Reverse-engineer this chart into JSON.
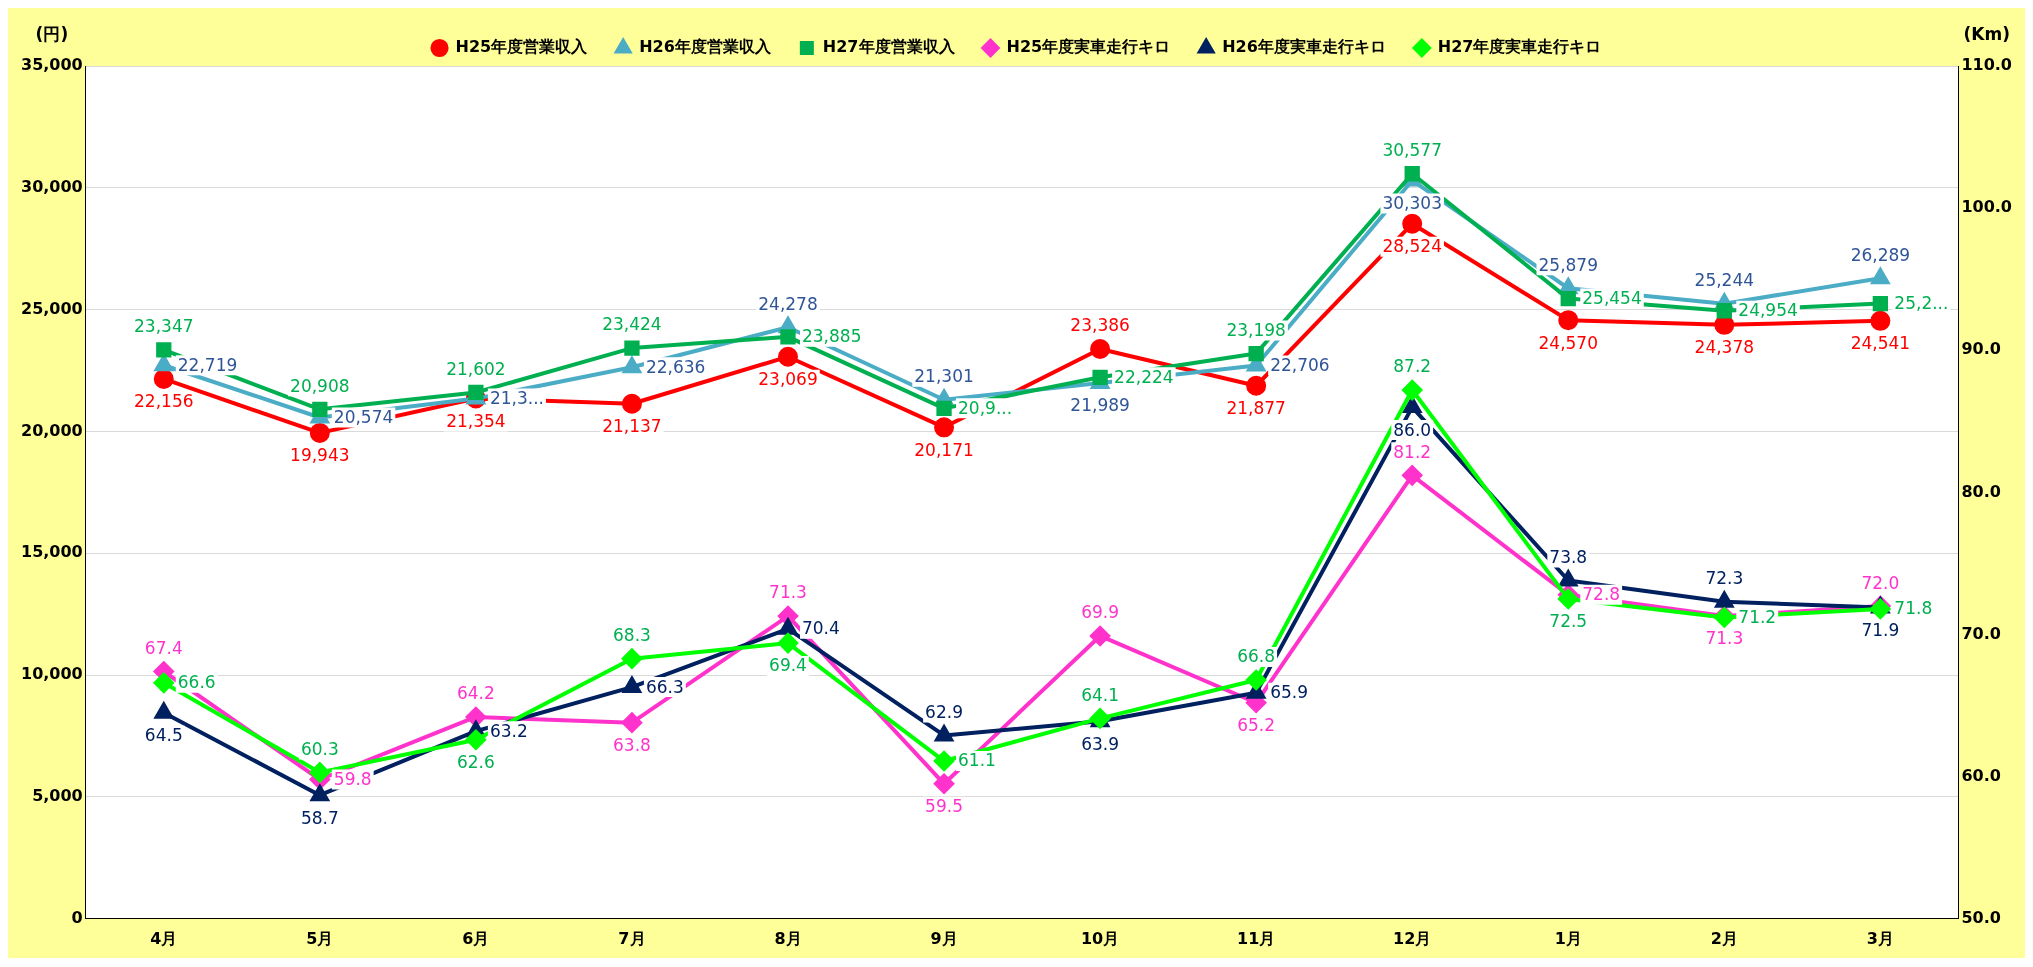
{
  "chart_data": {
    "type": "line",
    "categories": [
      "4月",
      "5月",
      "6月",
      "7月",
      "8月",
      "9月",
      "10月",
      "11月",
      "12月",
      "1月",
      "2月",
      "3月"
    ],
    "ylabel": "(円)",
    "y2label": "(Km)",
    "ylim": [
      0,
      35000
    ],
    "yticks": [
      0,
      {
        "value": 5000,
        "label": "5,000"
      },
      {
        "value": 10000,
        "label": "10,000"
      },
      {
        "value": 15000,
        "label": "15,000"
      },
      {
        "value": 20000,
        "label": "20,000"
      },
      {
        "value": 25000,
        "label": "25,000"
      },
      {
        "value": 30000,
        "label": "30,000"
      },
      {
        "value": 35000,
        "label": "35,000"
      }
    ],
    "y2lim": [
      50,
      110
    ],
    "y2ticks": [
      {
        "value": 50,
        "label": "50.0"
      },
      {
        "value": 60,
        "label": "60.0"
      },
      {
        "value": 70,
        "label": "70.0"
      },
      {
        "value": 80,
        "label": "80.0"
      },
      {
        "value": 90,
        "label": "90.0"
      },
      {
        "value": 100,
        "label": "100.0"
      },
      {
        "value": 110,
        "label": "110.0"
      }
    ],
    "grid": "y",
    "legend": "top",
    "line_style": "solid",
    "series": [
      {
        "name": "H25年度営業収入",
        "color": "#ff0000",
        "marker": "circle",
        "values": [
          22156,
          19943,
          21354,
          21137,
          23069,
          20171,
          23386,
          21877,
          28524,
          24570,
          24378,
          24541
        ],
        "value_labels": [
          "22,156",
          "19,943",
          "21,354",
          "21,137",
          "23,069",
          "20,171",
          "23,386",
          "21,877",
          "28,524",
          "24,570",
          "24,378",
          "24,541"
        ]
      },
      {
        "name": "H26年度営業収入",
        "color": "#4bacc6",
        "marker": "triangle",
        "values": [
          22719,
          20574,
          21350,
          22636,
          24278,
          21301,
          21989,
          22706,
          30303,
          25879,
          25244,
          26289
        ],
        "value_labels": [
          "22,719",
          "20,574",
          "21,3...",
          "22,636",
          "24,278",
          "21,301",
          "21,989",
          "22,706",
          "30,303",
          "25,879",
          "25,244",
          "26,289"
        ]
      },
      {
        "name": "H27年度営業収入",
        "color": "#00b050",
        "marker": "square",
        "values": [
          23347,
          20908,
          21602,
          23424,
          23885,
          20950,
          22224,
          23198,
          30577,
          25454,
          24954,
          25250
        ],
        "value_labels": [
          "23,347",
          "20,908",
          "21,602",
          "23,424",
          "23,885",
          "20,9...",
          "22,224",
          "23,198",
          "30,577",
          "25,454",
          "24,954",
          "25,2..."
        ]
      },
      {
        "name": "H25年度実車走行キロ",
        "color": "#ff33cc",
        "marker": "diamond",
        "axis": "y2",
        "values": [
          67.4,
          59.8,
          64.2,
          63.8,
          71.3,
          59.5,
          69.9,
          65.2,
          81.2,
          72.8,
          71.3,
          72.0
        ],
        "value_labels": [
          "67.4",
          "59.8",
          "64.2",
          "63.8",
          "71.3",
          "59.5",
          "69.9",
          "65.2",
          "81.2",
          "72.8",
          "71.3",
          "72.0"
        ]
      },
      {
        "name": "H26年度実車走行キロ",
        "color": "#002060",
        "marker": "triangle",
        "axis": "y2",
        "values": [
          64.5,
          58.7,
          63.2,
          66.3,
          70.4,
          62.9,
          63.9,
          65.9,
          86.0,
          73.8,
          72.3,
          71.9
        ],
        "value_labels": [
          "64.5",
          "58.7",
          "63.2",
          "66.3",
          "70.4",
          "62.9",
          "63.9",
          "65.9",
          "86.0",
          "73.8",
          "72.3",
          "71.9"
        ]
      },
      {
        "name": "H27年度実車走行キロ",
        "color": "#00ff00",
        "marker": "diamond",
        "axis": "y2",
        "values": [
          66.6,
          60.3,
          62.6,
          68.3,
          69.4,
          61.1,
          64.1,
          66.8,
          87.2,
          72.5,
          71.2,
          71.8
        ],
        "value_labels": [
          "66.6",
          "60.3",
          "62.6",
          "68.3",
          "69.4",
          "61.1",
          "64.1",
          "66.8",
          "87.2",
          "72.5",
          "71.2",
          "71.8"
        ]
      }
    ]
  }
}
